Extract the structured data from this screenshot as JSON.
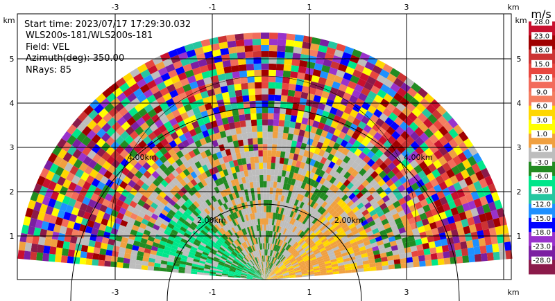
{
  "info": {
    "start_time": "Start time: 2023/07/17 17:29:30.032",
    "instrument": "WLS200s-181/WLS200s-181",
    "field": "Field: VEL",
    "azimuth": "Azimuth(deg): 350.00",
    "nrays": "NRays: 85"
  },
  "colorbar": {
    "unit": "m/s",
    "labels": [
      "28.0",
      "23.0",
      "18.0",
      "15.0",
      "12.0",
      "9.0",
      "6.0",
      "3.0",
      "1.0",
      "-1.0",
      "-3.0",
      "-6.0",
      "-9.0",
      "-12.0",
      "-15.0",
      "-18.0",
      "-23.0",
      "-28.0"
    ],
    "colors": [
      "#c8102e",
      "#a00000",
      "#cc3333",
      "#e8473f",
      "#f26b5b",
      "#f47e60",
      "#ffd700",
      "#ffff00",
      "#f0a040",
      "#bdbdbd",
      "#228b22",
      "#00e68a",
      "#26c6a0",
      "#1e90ff",
      "#0000ff",
      "#9932cc",
      "#7b1fa2",
      "#8b1a4a"
    ]
  },
  "chart_data": {
    "type": "heatmap",
    "title": "",
    "xlabel": "km",
    "ylabel": "km",
    "x_ticks": [
      "-3",
      "-1",
      "1",
      "3"
    ],
    "y_ticks": [
      "1",
      "2",
      "3",
      "4",
      "5"
    ],
    "x_range": [
      -4.1,
      4.1
    ],
    "y_range": [
      0,
      5.8
    ],
    "range_rings": [
      "2.00km",
      "4.00km"
    ],
    "colorbar_range": [
      -28.0,
      28.0
    ],
    "colorbar_unit": "m/s",
    "grid": true,
    "scan": "sector RHI-like sweep, near ranges mostly -1.0..1.0 m/s (grey) with patches of 1.0..3.0 (orange) and -3.0 (green), far ranges highly variable/noisy"
  }
}
